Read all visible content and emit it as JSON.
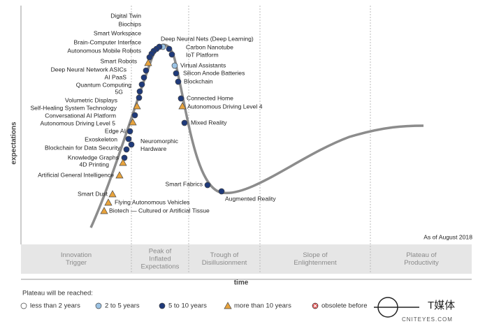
{
  "title_note": "As of August 2018",
  "axis": {
    "y_label": "expectations",
    "x_label": "time"
  },
  "phases": [
    [
      "Innovation",
      "Trigger"
    ],
    [
      "Peak of",
      "Inflated",
      "Expectations"
    ],
    [
      "Trough of",
      "Disillusionment"
    ],
    [
      "Slope of",
      "Enlightenment"
    ],
    [
      "Plateau of",
      "Productivity"
    ]
  ],
  "legend_title": "Plateau will be reached:",
  "plateau_groups": [
    {
      "label": "less than 2 years",
      "marker": "circle",
      "color": "#ffffff",
      "technologies": []
    },
    {
      "label": "2 to 5 years",
      "marker": "circle",
      "color": "#9cc3e4",
      "technologies": [
        "Deep Neural Nets (Deep Learning)",
        "Virtual Assistants"
      ]
    },
    {
      "label": "5 to 10 years",
      "marker": "circle",
      "color": "#1f3a7a",
      "technologies": [
        "Digital Twin",
        "Biochips",
        "Smart Workspace",
        "Brain-Computer Interface",
        "Autonomous Mobile Robots",
        "Deep Neural Network ASICs",
        "AI PaaS",
        "Quantum Computing",
        "5G",
        "Volumetric Displays",
        "Conversational AI Platform",
        "Edge AI",
        "Exoskeleton",
        "Blockchain for Data Security",
        "Knowledge Graphs",
        "Neuromorphic Hardware",
        "Carbon Nanotube",
        "IoT Platform",
        "Silicon Anode Batteries",
        "Blockchain",
        "Connected Home",
        "Mixed Reality",
        "Smart Fabrics",
        "Augmented Reality"
      ]
    },
    {
      "label": "more than 10 years",
      "marker": "triangle",
      "color": "#e8a33c",
      "technologies": [
        "Smart Robots",
        "Self-Healing System Technology",
        "Autonomous Driving Level 5",
        "4D Printing",
        "Artificial General Intelligence",
        "Smart Dust",
        "Flying Autonomous Vehicles",
        "Biotech — Cultured or Artificial Tissue",
        "Autonomous Driving Level 4"
      ]
    },
    {
      "label": "obsolete before",
      "marker": "x-circle",
      "color": "#e05050",
      "technologies": []
    }
  ],
  "watermark": {
    "brand": "T媒体",
    "site": "CNITEYES.COM"
  }
}
